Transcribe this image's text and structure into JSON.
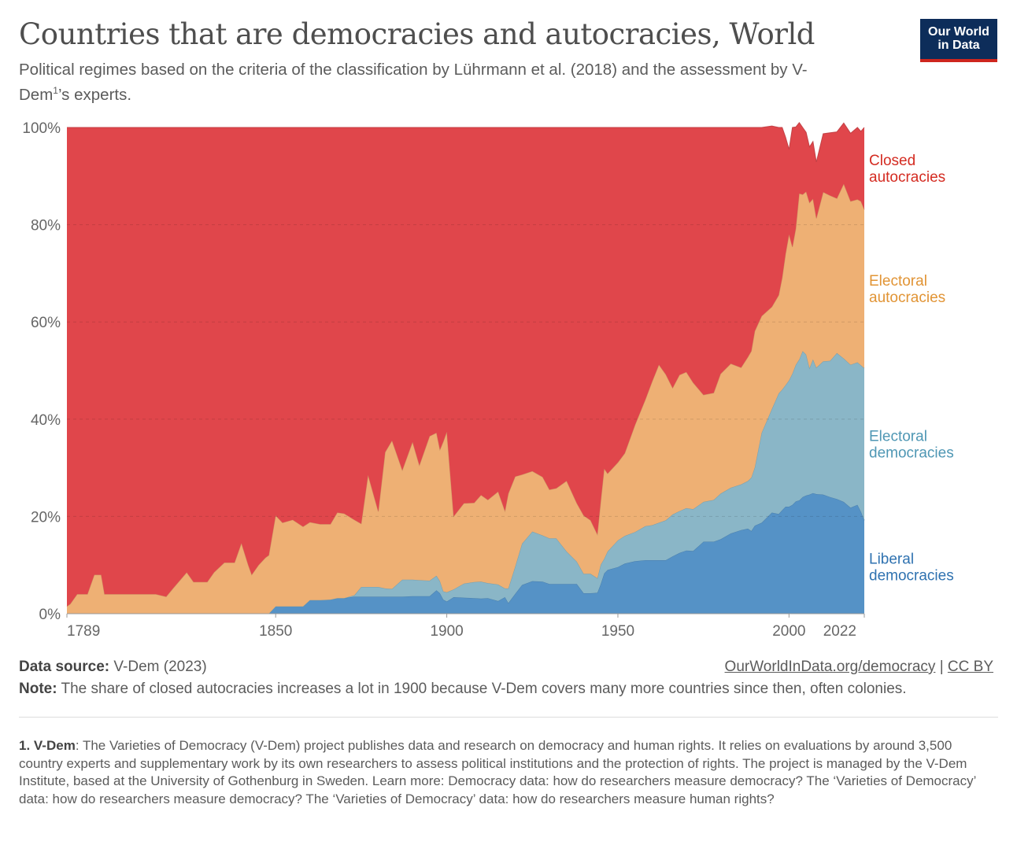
{
  "header": {
    "title": "Countries that are democracies and autocracies, World",
    "subtitle_main": "Political regimes based on the criteria of the classification by Lührmann et al. (2018) and the assessment by V-Dem",
    "subtitle_sup": "1",
    "subtitle_tail": "’s experts.",
    "logo_line1": "Our World",
    "logo_line2": "in Data"
  },
  "footer": {
    "source_label": "Data source:",
    "source_value": "V-Dem (2023)",
    "note_label": "Note:",
    "note_value": "The share of closed autocracies increases a lot in 1900 because V-Dem covers many more countries since then, often colonies.",
    "link": "OurWorldInData.org/democracy",
    "separator": "|",
    "license": "CC BY",
    "footnote_label": "1. V-Dem",
    "footnote_text": ": The Varieties of Democracy (V-Dem) project publishes data and research on democracy and human rights. It relies on evaluations by around 3,500 country experts and supplementary work by its own researchers to assess political institutions and the protection of rights. The project is managed by the V-Dem Institute, based at the University of Gothenburg in Sweden. Learn more: Democracy data: how do researchers measure democracy? The ‘Varieties of Democracy’ data: how do researchers measure democracy? The ‘Varieties of Democracy’ data: how do researchers measure human rights?"
  },
  "chart_data": {
    "type": "area",
    "stacked": true,
    "title": "Countries that are democracies and autocracies, World",
    "xlabel": "",
    "ylabel": "",
    "xlim": [
      1789,
      2022
    ],
    "ylim": [
      0,
      100
    ],
    "x_ticks": [
      1789,
      1850,
      1900,
      1950,
      2000,
      2022
    ],
    "y_ticks": [
      0,
      20,
      40,
      60,
      80,
      100
    ],
    "y_tick_labels": [
      "0%",
      "20%",
      "40%",
      "60%",
      "80%",
      "100%"
    ],
    "grid": "horizontal dashed",
    "x": [
      1789,
      1790,
      1792,
      1795,
      1797,
      1799,
      1800,
      1803,
      1805,
      1810,
      1815,
      1818,
      1820,
      1824,
      1826,
      1830,
      1832,
      1835,
      1838,
      1840,
      1842,
      1843,
      1845,
      1847,
      1848,
      1850,
      1852,
      1855,
      1858,
      1860,
      1863,
      1866,
      1868,
      1870,
      1873,
      1875,
      1877,
      1880,
      1882,
      1884,
      1887,
      1890,
      1892,
      1895,
      1897,
      1898,
      1899,
      1900,
      1902,
      1905,
      1908,
      1910,
      1912,
      1915,
      1917,
      1918,
      1920,
      1922,
      1925,
      1928,
      1930,
      1932,
      1935,
      1938,
      1940,
      1942,
      1944,
      1945,
      1946,
      1947,
      1950,
      1952,
      1955,
      1958,
      1960,
      1962,
      1964,
      1966,
      1968,
      1970,
      1972,
      1975,
      1978,
      1980,
      1983,
      1986,
      1988,
      1989,
      1990,
      1992,
      1995,
      1997,
      1998,
      1999,
      2000,
      2001,
      2002,
      2003,
      2004,
      2005,
      2006,
      2007,
      2008,
      2010,
      2012,
      2014,
      2016,
      2018,
      2020,
      2021,
      2022
    ],
    "series": [
      {
        "name": "Liberal democracies",
        "color": "#5592c6",
        "label_color": "#2f72b0",
        "values": [
          0,
          0,
          0,
          0,
          0,
          0,
          0,
          0,
          0,
          0,
          0,
          0,
          0,
          0,
          0,
          0,
          0,
          0,
          0,
          0,
          0,
          0,
          0,
          0,
          0,
          1.5,
          1.5,
          1.5,
          1.5,
          2.8,
          2.8,
          2.9,
          3.2,
          3.2,
          3.5,
          3.5,
          3.5,
          3.5,
          3.5,
          3.5,
          3.5,
          3.6,
          3.6,
          3.6,
          4.8,
          4.2,
          2.9,
          2.5,
          3.4,
          3.3,
          3.2,
          3.1,
          3.2,
          2.6,
          3.4,
          2.2,
          4.1,
          5.9,
          6.7,
          6.6,
          6.1,
          6.1,
          6.1,
          6.1,
          4.2,
          4.2,
          4.3,
          6.1,
          8.3,
          9.0,
          9.6,
          10.3,
          10.8,
          11,
          11,
          11,
          11,
          11.8,
          12.5,
          13,
          12.9,
          14.8,
          14.8,
          15.3,
          16.5,
          17.2,
          17.5,
          17,
          18.1,
          18.7,
          20.8,
          20.5,
          21.3,
          22,
          22,
          22.4,
          23.1,
          23.3,
          24,
          24.3,
          24.5,
          24.8,
          24.6,
          24.5,
          24,
          23.6,
          23,
          21.8,
          22.4,
          21,
          19.2
        ]
      },
      {
        "name": "Electoral democracies",
        "color": "#8ab6c7",
        "label_color": "#4f97b4",
        "values": [
          0,
          0,
          0,
          0,
          0,
          0,
          0,
          0,
          0,
          0,
          0,
          0,
          0,
          0,
          0,
          0,
          0,
          0,
          0,
          0,
          0,
          0,
          0,
          0,
          0,
          0,
          0,
          0,
          0,
          0,
          0,
          0,
          0,
          0,
          0.3,
          2,
          2,
          2,
          1.7,
          1.6,
          3.5,
          3.4,
          3.3,
          3.2,
          3.0,
          2.5,
          1.7,
          1.9,
          1.6,
          2.9,
          3.3,
          3.5,
          3.1,
          3.4,
          1.8,
          3.0,
          5.6,
          8.5,
          10.2,
          9.5,
          9.4,
          9.4,
          6.7,
          4.6,
          4,
          4,
          3.0,
          4.0,
          3.0,
          3.8,
          5.5,
          5.7,
          6,
          7.0,
          7.2,
          7.7,
          8.2,
          8.6,
          8.6,
          8.7,
          8.6,
          8.2,
          8.6,
          9.4,
          9.4,
          9.4,
          9.8,
          11,
          12,
          18.5,
          21.3,
          24.8,
          24.8,
          25,
          26,
          27,
          28.1,
          29,
          30,
          29,
          26,
          27.5,
          26,
          27.4,
          28,
          30,
          29.5,
          29.4,
          29.3,
          30.1,
          31.3
        ]
      },
      {
        "name": "Electoral autocracies",
        "color": "#eeb074",
        "label_color": "#e19435",
        "values": [
          1.5,
          2,
          4,
          4,
          8,
          8,
          4,
          4,
          4,
          4,
          4,
          3.5,
          5.2,
          8.5,
          6.5,
          6.5,
          8.5,
          10.5,
          10.5,
          14.5,
          10,
          8,
          10,
          11.5,
          12,
          18.7,
          17.2,
          17.8,
          16.4,
          16,
          15.6,
          15.5,
          17.6,
          17.4,
          15.5,
          13,
          23,
          15.5,
          28,
          30.5,
          22.5,
          28.3,
          23.6,
          29.7,
          29.4,
          27,
          30.8,
          33,
          15,
          16.5,
          16.3,
          17.8,
          17.1,
          19.1,
          15.9,
          19.5,
          18.5,
          14.2,
          12.4,
          12,
          10.0,
          10.3,
          14.5,
          12,
          12,
          11,
          9,
          13,
          18.5,
          16,
          16,
          17,
          22,
          26,
          29.5,
          32.5,
          30,
          26,
          28,
          28,
          26,
          22,
          22,
          24.6,
          25.5,
          24,
          25.5,
          26,
          28,
          24,
          21,
          20.2,
          23,
          27,
          30,
          26,
          28,
          34.1,
          32.2,
          33.5,
          34,
          33,
          30.7,
          34.8,
          34,
          31.8,
          35.9,
          33.6,
          33.5,
          33.7,
          32.6
        ]
      },
      {
        "name": "Closed autocracies",
        "color": "#e0464b",
        "label_color": "#d42b21",
        "values": [
          98.5,
          98,
          96,
          96,
          92,
          92,
          96,
          96,
          96,
          96,
          96,
          96.5,
          94.8,
          91.5,
          93.5,
          93.5,
          91.5,
          89.5,
          89.5,
          85.5,
          90,
          92,
          90,
          88.5,
          88,
          79.8,
          81.3,
          80.7,
          82.1,
          81.2,
          81.6,
          81.6,
          79.2,
          79.4,
          80.7,
          81.5,
          71.5,
          79,
          66.8,
          64.4,
          70.5,
          64.7,
          69.5,
          63.5,
          62.8,
          66.3,
          64.6,
          62.6,
          80,
          77.3,
          77.2,
          75.6,
          76.6,
          74.9,
          78.9,
          75.3,
          71.8,
          71.4,
          70.7,
          71.9,
          74.5,
          74.2,
          72.7,
          77.3,
          79.8,
          80.8,
          83.7,
          76.9,
          70.2,
          71.2,
          68.9,
          67,
          61.2,
          56,
          52.3,
          48.8,
          50.8,
          53.6,
          50.9,
          50.3,
          52.5,
          55,
          54.6,
          50.7,
          48.6,
          49.4,
          47.2,
          46,
          41.9,
          38.8,
          37.2,
          34.5,
          30.9,
          24,
          17.5,
          24.6,
          20.9,
          14.6,
          13.8,
          12.2,
          11.5,
          11.8,
          11.6,
          12,
          12.9,
          13.7,
          12.5,
          14,
          14.8,
          14.4,
          16.9
        ]
      }
    ]
  }
}
